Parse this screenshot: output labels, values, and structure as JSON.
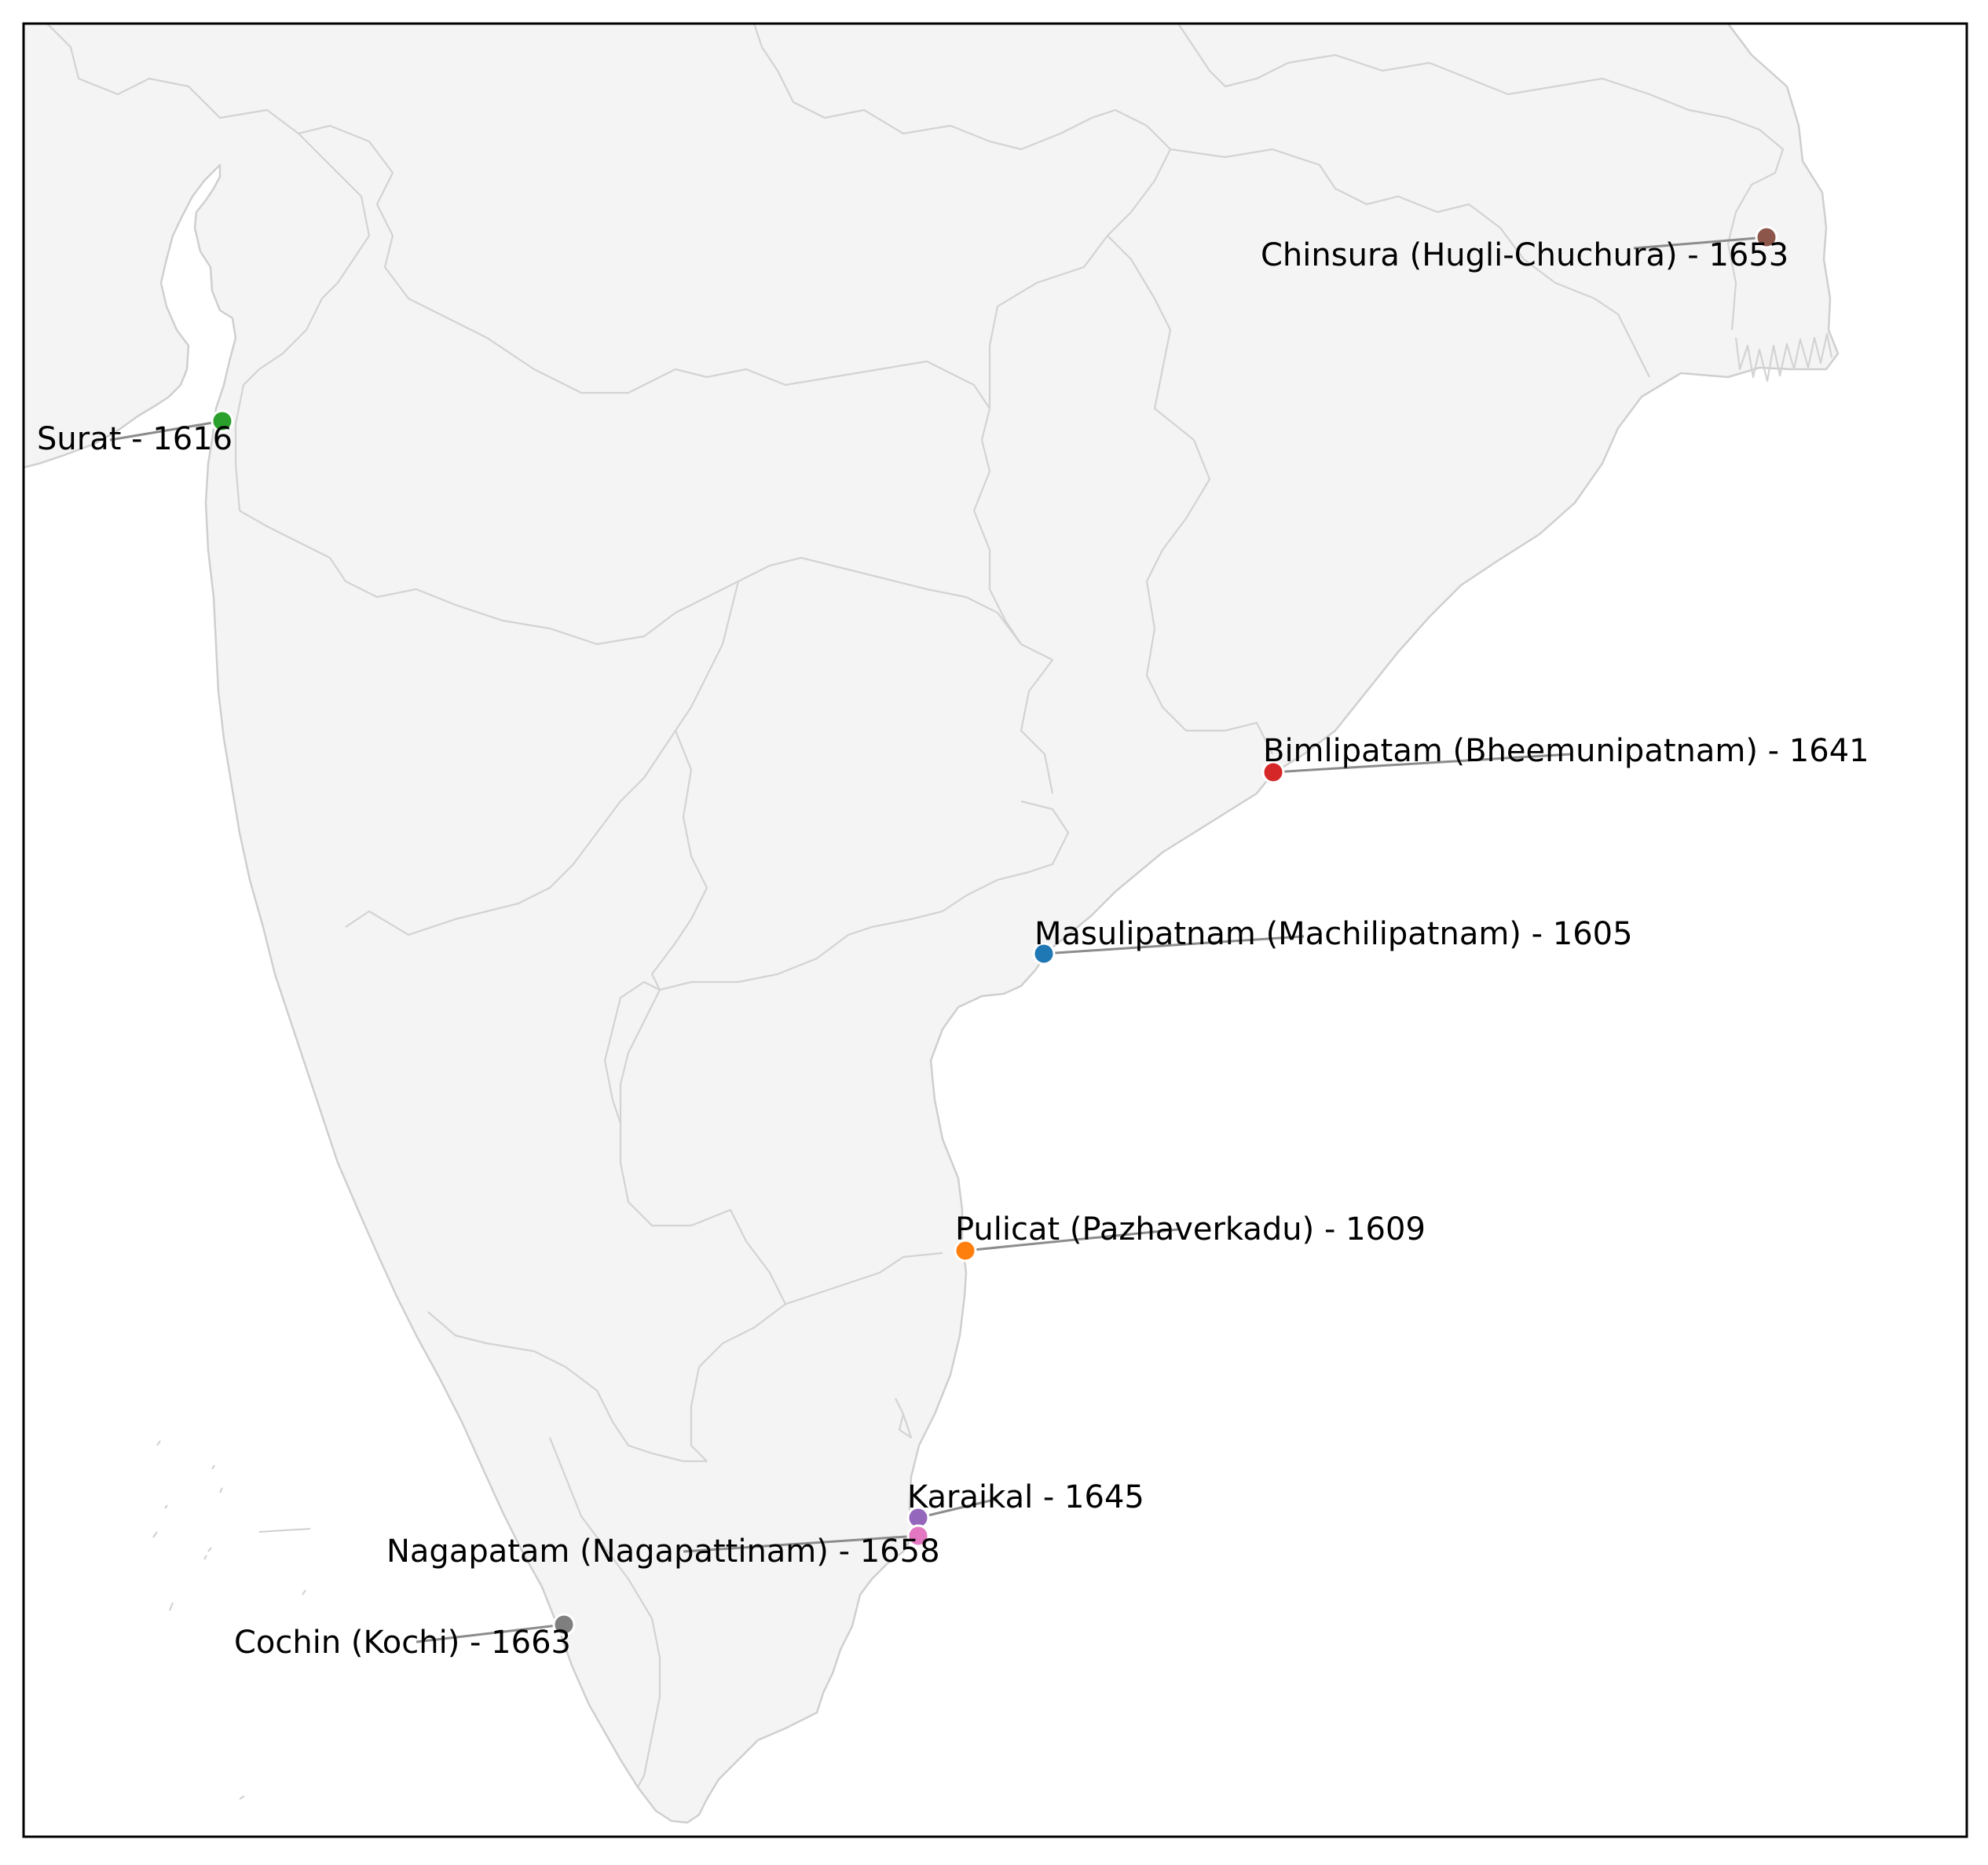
{
  "map": {
    "land_color": "#f4f4f4",
    "border_color": "#d3d3d3",
    "frame_color": "#000000",
    "leader_color": "#8c8c8c"
  },
  "settlements": [
    {
      "name": "Masulipatnam (Machilipatnam)",
      "year": 1605,
      "label": "Masulipatnam (Machilipatnam) - 1605",
      "color": "#1f77b4"
    },
    {
      "name": "Pulicat (Pazhaverkadu)",
      "year": 1609,
      "label": "Pulicat (Pazhaverkadu) - 1609",
      "color": "#ff7f0e"
    },
    {
      "name": "Surat",
      "year": 1616,
      "label": "Surat - 1616",
      "color": "#2ca02c"
    },
    {
      "name": "Bimlipatam (Bheemunipatnam)",
      "year": 1641,
      "label": "Bimlipatam (Bheemunipatnam) - 1641",
      "color": "#d62728"
    },
    {
      "name": "Karaikal",
      "year": 1645,
      "label": "Karaikal - 1645",
      "color": "#9467bd"
    },
    {
      "name": "Chinsura (Hugli-Chuchura)",
      "year": 1653,
      "label": "Chinsura (Hugli-Chuchura) - 1653",
      "color": "#8c564b"
    },
    {
      "name": "Nagapatam (Nagapattinam)",
      "year": 1658,
      "label": "Nagapatam (Nagapattinam) - 1658",
      "color": "#e377c2"
    },
    {
      "name": "Cochin (Kochi)",
      "year": 1663,
      "label": "Cochin (Kochi) - 1663",
      "color": "#7f7f7f"
    }
  ]
}
